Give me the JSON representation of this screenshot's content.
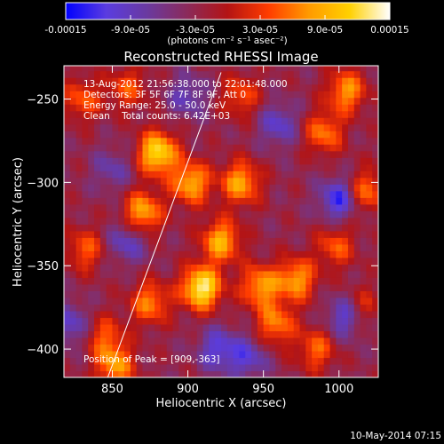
{
  "chart_data": {
    "type": "heatmap",
    "title": "Reconstructed RHESSI Image",
    "xlabel": "Heliocentric X (arcsec)",
    "ylabel": "Heliocentric Y (arcsec)",
    "xlim": [
      818,
      1026
    ],
    "ylim": [
      -417,
      -230
    ],
    "x_ticks": [
      850,
      900,
      950,
      1000
    ],
    "y_ticks": [
      -250,
      -300,
      -350,
      -400
    ],
    "colorbar": {
      "range": [
        -0.00015,
        0.00015
      ],
      "tick_values": [
        -0.00015,
        -9e-05,
        -3e-05,
        3e-05,
        9e-05,
        0.00015
      ],
      "tick_labels": [
        "-0.00015",
        "-9.0e-05",
        "-3.0e-05",
        "3.0e-05",
        "9.0e-05",
        "0.00015"
      ],
      "unit_label": "(photons cm⁻² s⁻¹ asec⁻²)",
      "colors": [
        "#0000ff",
        "#5a3ce0",
        "#6a3aa0",
        "#8b2a5a",
        "#b41414",
        "#ff3c00",
        "#ff9a00",
        "#ffd000",
        "#ffffff"
      ]
    },
    "annotations": [
      "13-Aug-2012 21:56:38.000 to 22:01:48.000",
      "Detectors: 3F 5F 6F 7F 8F 9F, Att 0",
      "Energy Range: 25.0 - 50.0 keV",
      "Clean    Total counts: 6.42E+03",
      "Position of Peak = [909,-363]"
    ],
    "limb_line": [
      [
        847,
        -417
      ],
      [
        922,
        -234
      ]
    ],
    "grid": false,
    "peak": [
      909,
      -363
    ],
    "hotspots": [
      {
        "x": 880,
        "y": -282,
        "value": 0.000125
      },
      {
        "x": 902,
        "y": -300,
        "value": 9e-05
      },
      {
        "x": 870,
        "y": -318,
        "value": 9e-05
      },
      {
        "x": 935,
        "y": -300,
        "value": 8.5e-05
      },
      {
        "x": 922,
        "y": -335,
        "value": 9e-05
      },
      {
        "x": 909,
        "y": -363,
        "value": 0.00014
      },
      {
        "x": 875,
        "y": -372,
        "value": 6.5e-05
      },
      {
        "x": 948,
        "y": -362,
        "value": 8e-05
      },
      {
        "x": 972,
        "y": -358,
        "value": 8e-05
      },
      {
        "x": 958,
        "y": -385,
        "value": 6.5e-05
      },
      {
        "x": 985,
        "y": -400,
        "value": 5e-05
      },
      {
        "x": 1005,
        "y": -245,
        "value": 7.5e-05
      },
      {
        "x": 1018,
        "y": -305,
        "value": 6e-05
      },
      {
        "x": 990,
        "y": -270,
        "value": 6e-05
      },
      {
        "x": 830,
        "y": -250,
        "value": 4.5e-05
      },
      {
        "x": 860,
        "y": -243,
        "value": 4e-05
      },
      {
        "x": 935,
        "y": -248,
        "value": 4e-05
      },
      {
        "x": 852,
        "y": -410,
        "value": 7.5e-05
      },
      {
        "x": 832,
        "y": -340,
        "value": 4.5e-05
      },
      {
        "x": 998,
        "y": -338,
        "value": 4.5e-05
      },
      {
        "x": 845,
        "y": -392,
        "value": 4e-05
      },
      {
        "x": 1015,
        "y": -375,
        "value": 3.5e-05
      }
    ],
    "coldspots": [
      {
        "x": 1000,
        "y": -310,
        "value": -0.00013
      },
      {
        "x": 960,
        "y": -265,
        "value": -0.0001
      },
      {
        "x": 860,
        "y": -335,
        "value": -0.0001
      },
      {
        "x": 822,
        "y": -385,
        "value": -0.0001
      },
      {
        "x": 920,
        "y": -400,
        "value": -0.00011
      },
      {
        "x": 1005,
        "y": -380,
        "value": -0.00012
      },
      {
        "x": 900,
        "y": -248,
        "value": -9e-05
      },
      {
        "x": 850,
        "y": -292,
        "value": -8e-05
      },
      {
        "x": 940,
        "y": -405,
        "value": -0.0001
      }
    ],
    "background_level": -3e-05
  },
  "timestamp": "10-May-2014 07:15"
}
